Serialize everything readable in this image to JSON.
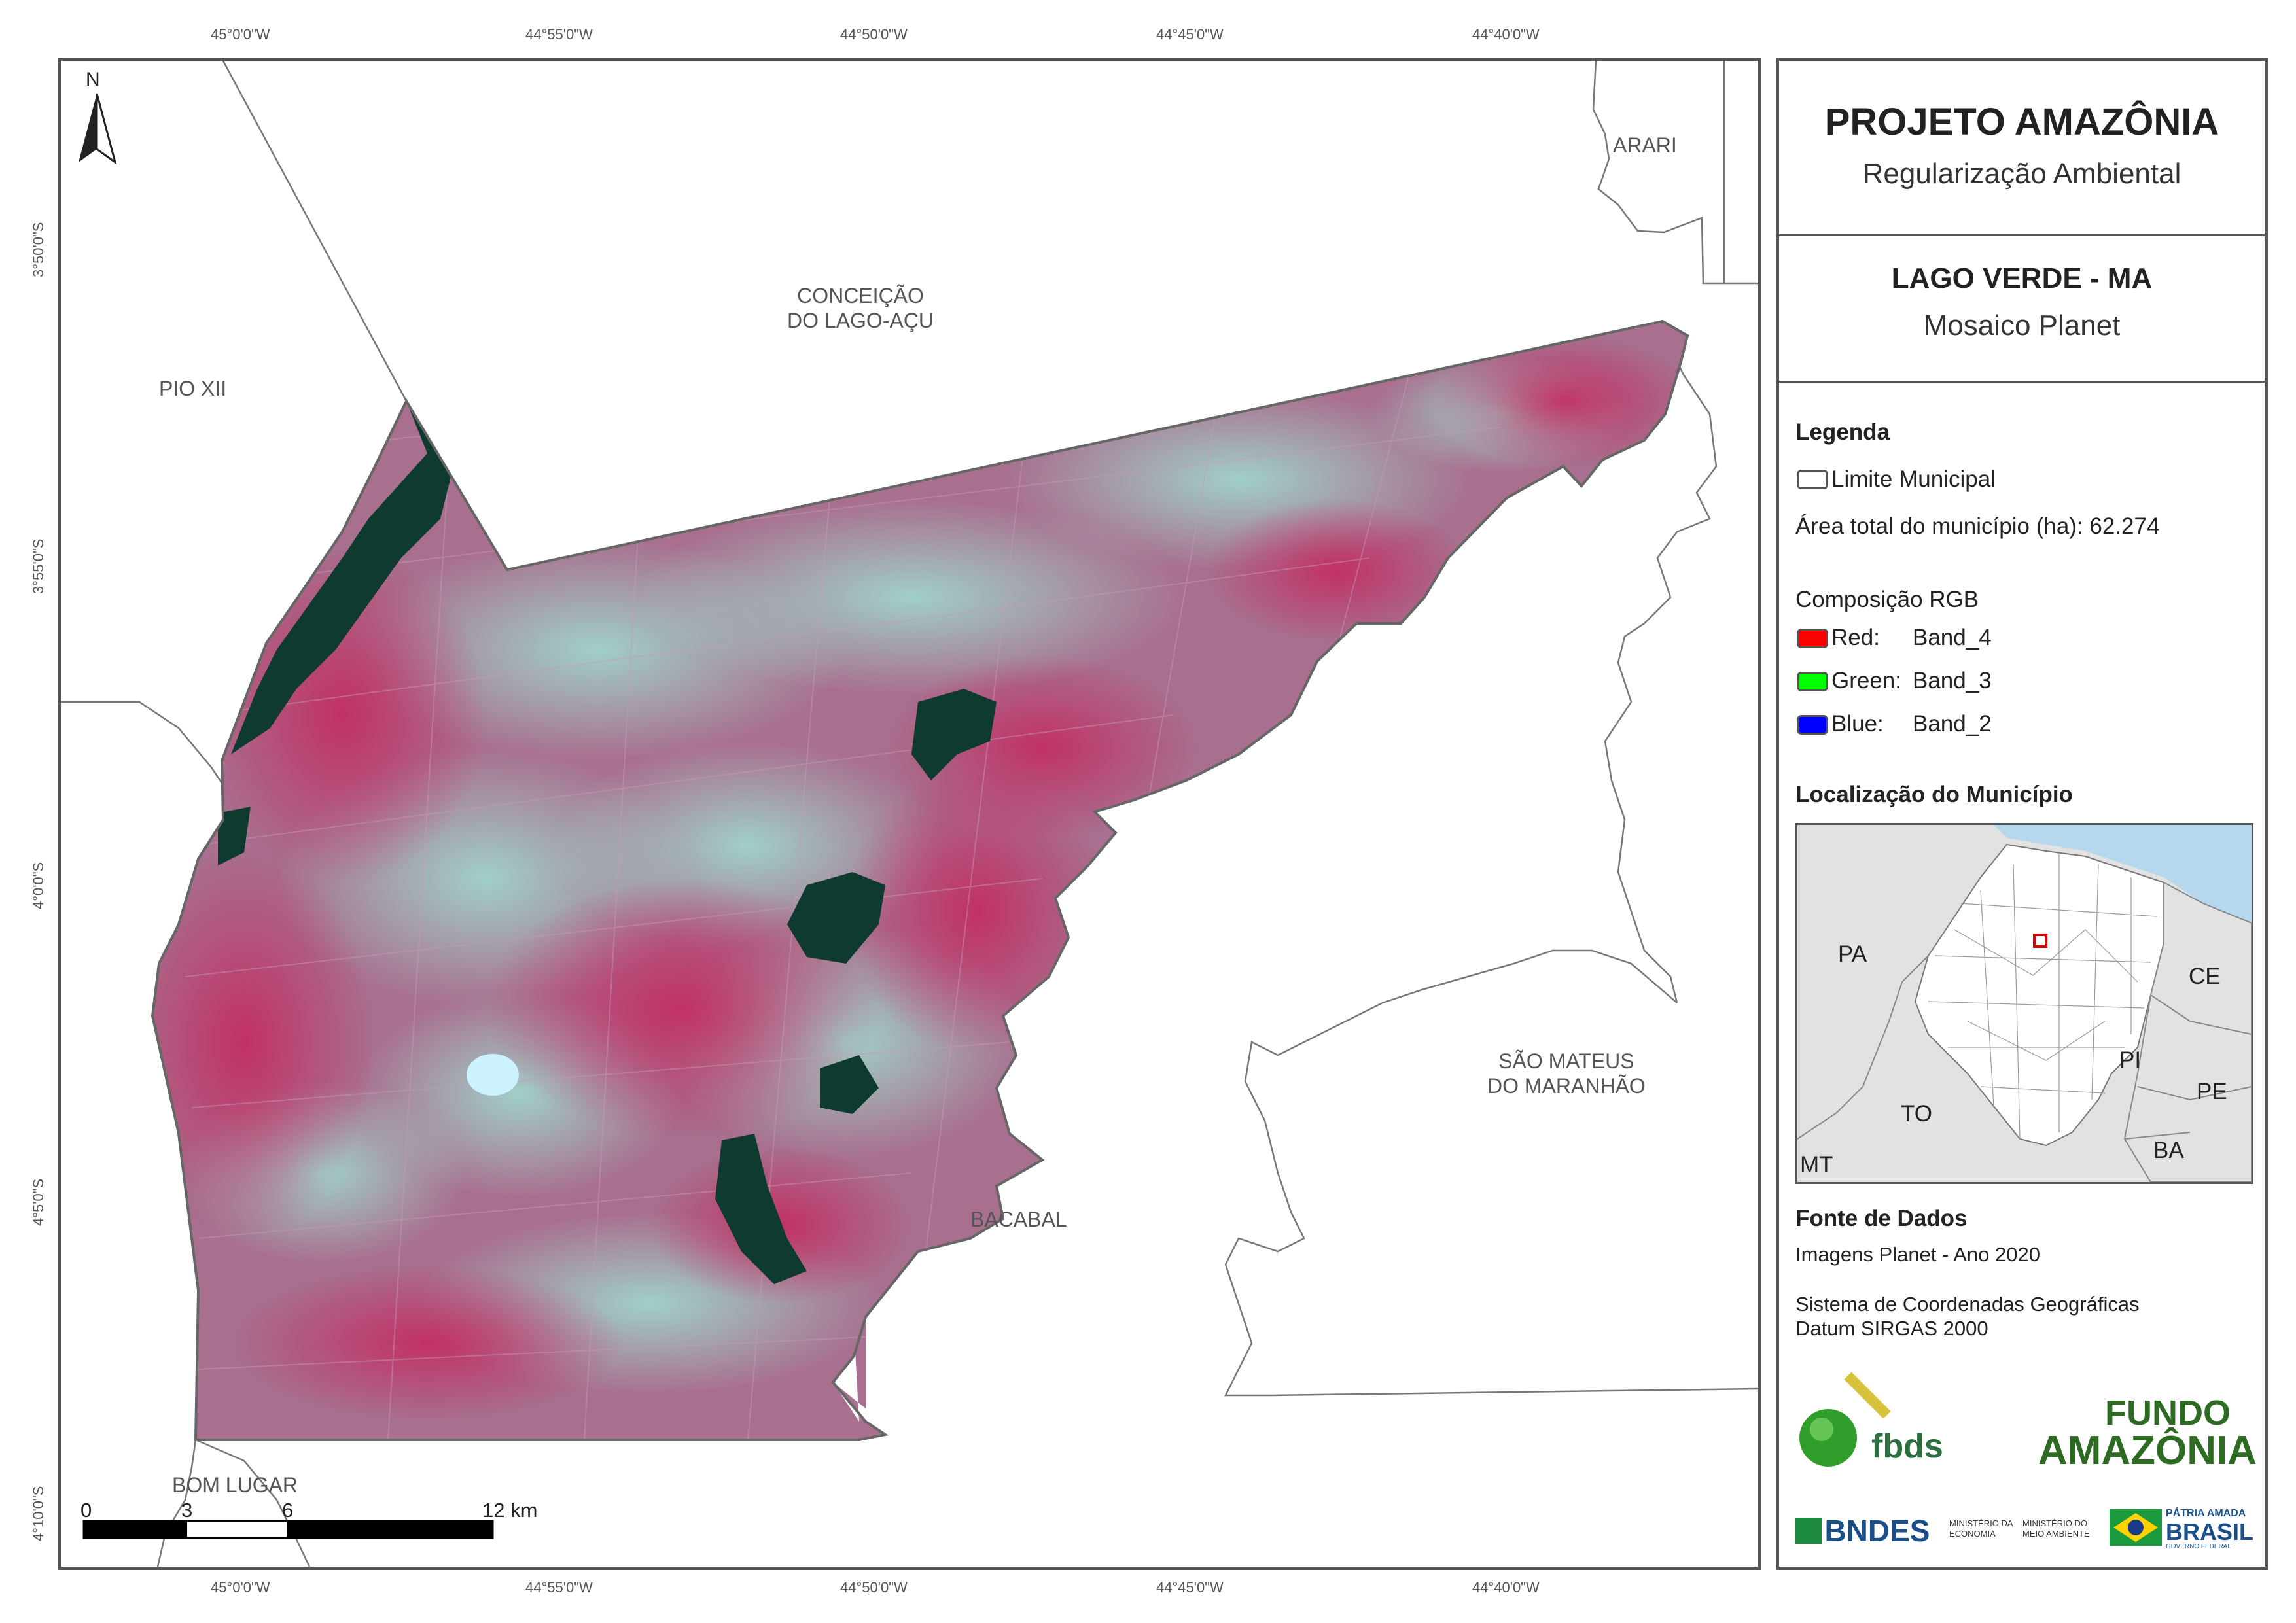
{
  "coordinates": {
    "top": [
      "45°0'0\"W",
      "44°55'0\"W",
      "44°50'0\"W",
      "44°45'0\"W",
      "44°40'0\"W"
    ],
    "bottom": [
      "45°0'0\"W",
      "44°55'0\"W",
      "44°50'0\"W",
      "44°45'0\"W",
      "44°40'0\"W"
    ],
    "left": [
      "3°50'0\"S",
      "3°55'0\"S",
      "4°0'0\"S",
      "4°5'0\"S",
      "4°10'0\"S"
    ]
  },
  "map": {
    "north_label": "N",
    "places": {
      "arari": "ARARI",
      "conceicao_line1": "CONCEIÇÃO",
      "conceicao_line2": "DO LAGO-AÇU",
      "pio_xii": "PIO XII",
      "sao_mateus_line1": "SÃO MATEUS",
      "sao_mateus_line2": "DO MARANHÃO",
      "bacabal": "BACABAL",
      "bom_lugar": "BOM LUGAR"
    },
    "scale": {
      "ticks": [
        "0",
        "3",
        "6",
        "12 km"
      ]
    },
    "colors": {
      "imagery_base": "#9a5a7e",
      "imagery_red": "#c8285f",
      "imagery_cyan": "#8fd6c8",
      "water": "#0f3b30",
      "boundary": "#666666"
    }
  },
  "panel": {
    "title": "PROJETO AMAZÔNIA",
    "subtitle": "Regularização Ambiental",
    "municipality": "LAGO VERDE - MA",
    "mosaic": "Mosaico Planet",
    "legend": {
      "heading": "Legenda",
      "limit_label": "Limite Municipal",
      "area_text": "Área total do município (ha): 62.274",
      "rgb_heading": "Composição RGB",
      "bands": [
        {
          "name": "Red:",
          "band": "Band_4",
          "color": "#ff0000"
        },
        {
          "name": "Green:",
          "band": "Band_3",
          "color": "#00ff00"
        },
        {
          "name": "Blue:",
          "band": "Band_2",
          "color": "#0000ff"
        }
      ]
    },
    "location": {
      "heading": "Localização do Município",
      "states": [
        "PA",
        "CE",
        "PI",
        "PE",
        "TO",
        "BA",
        "MT"
      ]
    },
    "sources": {
      "heading": "Fonte de Dados",
      "line1": "Imagens Planet - Ano 2020",
      "line2": "Sistema de Coordenadas Geográficas",
      "line3": "Datum SIRGAS 2000"
    },
    "logos": {
      "fbds": "fbds",
      "fundo_line1": "FUNDO",
      "fundo_line2": "AMAZÔNIA",
      "bndes": "BNDES",
      "min_economia": "MINISTÉRIO DA ECONOMIA",
      "min_meio_ambiente": "MINISTÉRIO DO MEIO AMBIENTE",
      "patria_line1": "PÁTRIA AMADA",
      "patria_line2": "BRASIL",
      "patria_line3": "GOVERNO FEDERAL"
    }
  }
}
